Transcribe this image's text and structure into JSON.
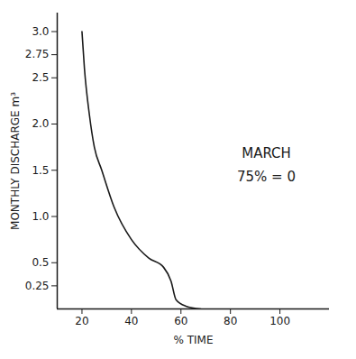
{
  "chart_data": {
    "type": "line",
    "x_label": "% TIME",
    "y_label": "MONTHLY DISCHARGE m³",
    "annotations": [
      "MARCH",
      "75% = 0"
    ],
    "color": "#1a1a1a",
    "x": [
      20,
      21,
      23,
      25,
      28,
      33,
      40,
      47,
      53,
      56,
      58,
      62,
      68
    ],
    "values": [
      3.0,
      2.6,
      2.1,
      1.75,
      1.5,
      1.1,
      0.75,
      0.55,
      0.45,
      0.3,
      0.1,
      0.03,
      0
    ],
    "xlim": [
      10,
      120
    ],
    "xticks": [
      20,
      40,
      60,
      80,
      100
    ],
    "ylim": [
      0,
      3.2
    ],
    "yticks": [
      {
        "value": 3,
        "label": "3.0"
      },
      2.75,
      2.5,
      {
        "value": 2,
        "label": "2.0"
      },
      1.5,
      {
        "value": 1,
        "label": "1.0"
      },
      0.5,
      0.25
    ],
    "grid": false
  }
}
